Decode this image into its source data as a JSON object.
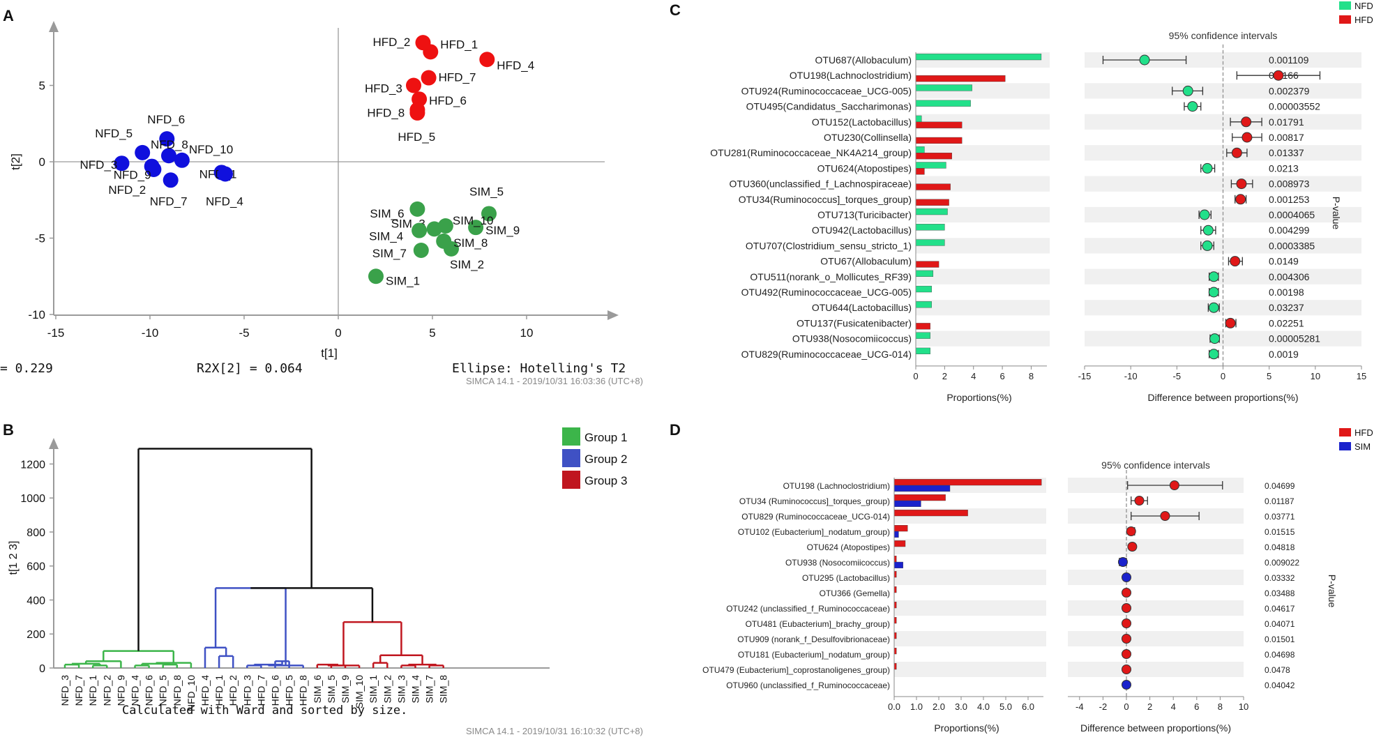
{
  "chart_data": [
    {
      "panel": "A",
      "type": "scatter",
      "panel_label": "A",
      "xlabel": "t[1]",
      "ylabel": "t[2]",
      "xlim": [
        -15,
        15
      ],
      "ylim": [
        -10,
        10
      ],
      "xticks": [
        -15,
        -10,
        -5,
        0,
        5,
        10
      ],
      "yticks": [
        -10,
        -5,
        0,
        5
      ],
      "footer_left": "= 0.229",
      "footer_mid": "R2X[2] = 0.064",
      "footer_right": "Ellipse: Hotelling's T2",
      "watermark": "SIMCA 14.1 - 2019/10/31 16:03:36 (UTC+8)",
      "colors": {
        "NFD": "#1010dd",
        "HFD": "#ee1111",
        "SIM": "#3aa14a"
      },
      "points": [
        {
          "label": "NFD_1",
          "group": "NFD",
          "x": -6.2,
          "y": -0.7
        },
        {
          "label": "NFD_2",
          "group": "NFD",
          "x": -9.8,
          "y": -0.5
        },
        {
          "label": "NFD_3",
          "group": "NFD",
          "x": -11.5,
          "y": -0.1
        },
        {
          "label": "NFD_4",
          "group": "NFD",
          "x": -6.0,
          "y": -0.8
        },
        {
          "label": "NFD_5",
          "group": "NFD",
          "x": -10.4,
          "y": 0.6
        },
        {
          "label": "NFD_6",
          "group": "NFD",
          "x": -9.1,
          "y": 1.5
        },
        {
          "label": "NFD_7",
          "group": "NFD",
          "x": -8.9,
          "y": -1.2
        },
        {
          "label": "NFD_8",
          "group": "NFD",
          "x": -9.0,
          "y": 0.4
        },
        {
          "label": "NFD_9",
          "group": "NFD",
          "x": -9.9,
          "y": -0.3
        },
        {
          "label": "NFD_10",
          "group": "NFD",
          "x": -8.3,
          "y": 0.1
        },
        {
          "label": "HFD_1",
          "group": "HFD",
          "x": 4.9,
          "y": 7.2
        },
        {
          "label": "HFD_2",
          "group": "HFD",
          "x": 4.5,
          "y": 7.8
        },
        {
          "label": "HFD_3",
          "group": "HFD",
          "x": 4.0,
          "y": 5.0
        },
        {
          "label": "HFD_4",
          "group": "HFD",
          "x": 7.9,
          "y": 6.7
        },
        {
          "label": "HFD_5",
          "group": "HFD",
          "x": 4.2,
          "y": 3.2
        },
        {
          "label": "HFD_6",
          "group": "HFD",
          "x": 4.3,
          "y": 4.1
        },
        {
          "label": "HFD_7",
          "group": "HFD",
          "x": 4.8,
          "y": 5.5
        },
        {
          "label": "HFD_8",
          "group": "HFD",
          "x": 4.2,
          "y": 3.4
        },
        {
          "label": "SIM_1",
          "group": "SIM",
          "x": 2.0,
          "y": -7.5
        },
        {
          "label": "SIM_2",
          "group": "SIM",
          "x": 6.0,
          "y": -5.7
        },
        {
          "label": "SIM_3",
          "group": "SIM",
          "x": 5.1,
          "y": -4.4
        },
        {
          "label": "SIM_4",
          "group": "SIM",
          "x": 4.3,
          "y": -4.5
        },
        {
          "label": "SIM_5",
          "group": "SIM",
          "x": 8.0,
          "y": -3.4
        },
        {
          "label": "SIM_6",
          "group": "SIM",
          "x": 4.2,
          "y": -3.1
        },
        {
          "label": "SIM_7",
          "group": "SIM",
          "x": 4.4,
          "y": -5.8
        },
        {
          "label": "SIM_8",
          "group": "SIM",
          "x": 5.6,
          "y": -5.2
        },
        {
          "label": "SIM_9",
          "group": "SIM",
          "x": 7.3,
          "y": -4.3
        },
        {
          "label": "SIM_10",
          "group": "SIM",
          "x": 5.7,
          "y": -4.2
        }
      ]
    },
    {
      "panel": "B",
      "type": "dendrogram",
      "panel_label": "B",
      "ylabel": "t[1 2 3]",
      "ylim": [
        0,
        1300
      ],
      "yticks": [
        0,
        200,
        400,
        600,
        800,
        1000,
        1200
      ],
      "caption": "Calculated with Ward and sorted by size.",
      "watermark": "SIMCA 14.1 - 2019/10/31 16:10:32 (UTC+8)",
      "leaves": [
        "NFD_3",
        "NFD_7",
        "NFD_1",
        "NFD_2",
        "NFD_9",
        "NFD_4",
        "NFD_6",
        "NFD_5",
        "NFD_8",
        "NFD_10",
        "HFD_4",
        "HFD_1",
        "HFD_2",
        "HFD_3",
        "HFD_7",
        "HFD_6",
        "HFD_5",
        "HFD_8",
        "SIM_6",
        "SIM_5",
        "SIM_9",
        "SIM_10",
        "SIM_1",
        "SIM_2",
        "SIM_3",
        "SIM_4",
        "SIM_7",
        "SIM_8"
      ],
      "legend": [
        {
          "label": "Group 1",
          "color": "#3cb54a"
        },
        {
          "label": "Group 2",
          "color": "#3f51c4"
        },
        {
          "label": "Group 3",
          "color": "#c0161f"
        }
      ],
      "root_color": "#111111",
      "merges": [
        {
          "l": [
            0,
            1
          ],
          "h": 20,
          "c": 0
        },
        {
          "l": [
            2,
            3
          ],
          "h": 15,
          "c": 0
        },
        {
          "l": [
            0,
            1,
            2,
            3
          ],
          "h": 25,
          "c": 0
        },
        {
          "l": [
            5,
            6
          ],
          "h": 15,
          "c": 0
        },
        {
          "l": [
            7,
            8
          ],
          "h": 20,
          "c": 0
        },
        {
          "l": [
            5,
            6,
            7,
            8
          ],
          "h": 25,
          "c": 0
        },
        {
          "l": [
            5,
            6,
            7,
            8,
            9
          ],
          "h": 30,
          "c": 0
        },
        {
          "l": [
            0,
            1,
            2,
            3,
            4
          ],
          "h": 40,
          "c": 0
        },
        {
          "l": [
            0,
            1,
            2,
            3,
            4,
            5,
            6,
            7,
            8,
            9
          ],
          "h": 100,
          "c": 0
        },
        {
          "l": [
            11,
            12
          ],
          "h": 70,
          "c": 1
        },
        {
          "l": [
            10,
            11,
            12
          ],
          "h": 120,
          "c": 1
        },
        {
          "l": [
            13,
            14
          ],
          "h": 15,
          "c": 1
        },
        {
          "l": [
            15,
            16
          ],
          "h": 40,
          "c": 1
        },
        {
          "l": [
            13,
            14,
            15,
            16
          ],
          "h": 20,
          "c": 1
        },
        {
          "l": [
            13,
            14,
            15,
            16,
            17
          ],
          "h": 15,
          "c": 1
        },
        {
          "l": [
            10,
            11,
            12,
            13,
            14,
            15,
            16,
            17
          ],
          "h": 470,
          "c": 1
        },
        {
          "l": [
            19,
            20
          ],
          "h": 15,
          "c": 2
        },
        {
          "l": [
            18,
            19,
            20
          ],
          "h": 20,
          "c": 2
        },
        {
          "l": [
            18,
            19,
            20,
            21
          ],
          "h": 15,
          "c": 2
        },
        {
          "l": [
            22,
            23
          ],
          "h": 30,
          "c": 2
        },
        {
          "l": [
            24,
            25
          ],
          "h": 15,
          "c": 2
        },
        {
          "l": [
            26,
            27
          ],
          "h": 15,
          "c": 2
        },
        {
          "l": [
            24,
            25,
            26,
            27
          ],
          "h": 20,
          "c": 2
        },
        {
          "l": [
            22,
            23,
            24,
            25,
            26,
            27
          ],
          "h": 75,
          "c": 2
        },
        {
          "l": [
            18,
            19,
            20,
            21,
            22,
            23,
            24,
            25,
            26,
            27
          ],
          "h": 270,
          "c": 2
        },
        {
          "l": [
            10,
            11,
            12,
            13,
            14,
            15,
            16,
            17,
            18,
            19,
            20,
            21,
            22,
            23,
            24,
            25,
            26,
            27
          ],
          "h": 470,
          "c": 3
        },
        {
          "l": [
            0,
            1,
            2,
            3,
            4,
            5,
            6,
            7,
            8,
            9,
            10,
            11,
            12,
            13,
            14,
            15,
            16,
            17,
            18,
            19,
            20,
            21,
            22,
            23,
            24,
            25,
            26,
            27
          ],
          "h": 1290,
          "c": 3
        }
      ]
    },
    {
      "panel": "C",
      "type": "bar",
      "panel_label": "C",
      "ci_title": "95% confidence intervals",
      "xlabel_left": "Proportions(%)",
      "xlabel_right": "Difference between proportions(%)",
      "pvalue_label": "P-value",
      "prop_ticks": [
        0,
        2,
        4,
        6,
        8
      ],
      "prop_max": 8.8,
      "diff_ticks": [
        -15,
        -10,
        -5,
        0,
        5,
        10,
        15
      ],
      "diff_range": [
        -15,
        15
      ],
      "groups": [
        {
          "name": "NFD",
          "color": "#22e08a"
        },
        {
          "name": "HFD",
          "color": "#e01818"
        }
      ],
      "categories": [
        "OTU687(Allobaculum)",
        "OTU198(Lachnoclostridium)",
        "OTU924(Ruminococcaceae_UCG-005)",
        "OTU495(Candidatus_Saccharimonas)",
        "OTU152(Lactobacillus)",
        "OTU230(Collinsella)",
        "OTU281(Ruminococcaceae_NK4A214_group)",
        "OTU624(Atopostipes)",
        "OTU360(unclassified_f_Lachnospiraceae)",
        "OTU34(Ruminococcus]_torques_group)",
        "OTU713(Turicibacter)",
        "OTU942(Lactobacillus)",
        "OTU707(Clostridium_sensu_stricto_1)",
        "OTU67(Allobaculum)",
        "OTU511(norank_o_Mollicutes_RF39)",
        "OTU492(Ruminococcaceae_UCG-005)",
        "OTU644(Lactobacillus)",
        "OTU137(Fusicatenibacter)",
        "OTU938(Nosocomiicoccus)",
        "OTU829(Ruminococcaceae_UCG-014)"
      ],
      "series": [
        {
          "name": "NFD",
          "values": [
            8.7,
            0,
            3.9,
            3.8,
            0.4,
            0,
            0.6,
            2.1,
            0,
            0,
            2.2,
            2.0,
            2.0,
            0,
            1.2,
            1.1,
            1.1,
            0,
            1.0,
            1.0
          ]
        },
        {
          "name": "HFD",
          "values": [
            0,
            6.2,
            0,
            0,
            3.2,
            3.2,
            2.5,
            0.6,
            2.4,
            2.3,
            0,
            0,
            0,
            1.6,
            0,
            0,
            0,
            1.0,
            0,
            0
          ]
        }
      ],
      "diff": [
        -8.5,
        6.0,
        -3.8,
        -3.3,
        2.5,
        2.6,
        1.5,
        -1.7,
        2.0,
        1.9,
        -2.0,
        -1.6,
        -1.7,
        1.3,
        -1.0,
        -1.0,
        -1.0,
        0.8,
        -0.9,
        -1.0
      ],
      "ci_low": [
        -13.0,
        1.5,
        -5.5,
        -4.2,
        0.8,
        1.0,
        0.4,
        -2.4,
        0.9,
        1.3,
        -2.6,
        -2.4,
        -2.4,
        0.6,
        -1.5,
        -1.5,
        -1.6,
        0.3,
        -1.4,
        -1.5
      ],
      "ci_high": [
        -4.0,
        10.5,
        -2.2,
        -2.4,
        4.2,
        4.2,
        2.6,
        -0.9,
        3.2,
        2.5,
        -1.3,
        -0.8,
        -1.0,
        2.1,
        -0.5,
        -0.5,
        -0.4,
        1.4,
        -0.4,
        -0.5
      ],
      "pvalues": [
        "0.001109",
        "0.0166",
        "0.002379",
        "0.00003552",
        "0.01791",
        "0.00817",
        "0.01337",
        "0.0213",
        "0.008973",
        "0.001253",
        "0.0004065",
        "0.004299",
        "0.0003385",
        "0.0149",
        "0.004306",
        "0.00198",
        "0.03237",
        "0.02251",
        "0.00005281",
        "0.0019"
      ]
    },
    {
      "panel": "D",
      "type": "bar",
      "panel_label": "D",
      "ci_title": "95% confidence intervals",
      "xlabel_left": "Proportions(%)",
      "xlabel_right": "Difference between proportions(%)",
      "pvalue_label": "P-value",
      "prop_ticks": [
        "0.0",
        "1.0",
        "2.0",
        "3.0",
        "4.0",
        "5.0",
        "6.0"
      ],
      "prop_max": 6.5,
      "diff_ticks": [
        -4,
        -2,
        0,
        2,
        4,
        6,
        8,
        10
      ],
      "diff_range": [
        -5,
        10
      ],
      "groups": [
        {
          "name": "HFD",
          "color": "#e01818"
        },
        {
          "name": "SIM",
          "color": "#1a22cc"
        }
      ],
      "categories": [
        "OTU198 (Lachnoclostridium)",
        "OTU34 (Ruminococcus]_torques_group)",
        "OTU829 (Ruminococcaceae_UCG-014)",
        "OTU102 (Eubacterium]_nodatum_group)",
        "OTU624 (Atopostipes)",
        "OTU938 (Nosocomiicoccus)",
        "OTU295 (Lactobacillus)",
        "OTU366 (Gemella)",
        "OTU242 (unclassified_f_Ruminococcaceae)",
        "OTU481 (Eubacterium]_brachy_group)",
        "OTU909 (norank_f_Desulfovibrionaceae)",
        "OTU181 (Eubacterium]_nodatum_group)",
        "OTU479 (Eubacterium]_coprostanoligenes_group)",
        "OTU960 (unclassified_f_Ruminococcaceae)"
      ],
      "series": [
        {
          "name": "HFD",
          "values": [
            6.6,
            2.3,
            3.3,
            0.6,
            0.5,
            0.1,
            0.1,
            0.1,
            0.1,
            0.1,
            0.1,
            0.1,
            0.1,
            0
          ]
        },
        {
          "name": "SIM",
          "values": [
            2.5,
            1.2,
            0,
            0.2,
            0,
            0.4,
            0,
            0,
            0,
            0,
            0,
            0,
            0,
            0
          ]
        }
      ],
      "diff": [
        4.1,
        1.1,
        3.3,
        0.4,
        0.5,
        -0.3,
        0,
        0,
        0,
        0,
        0,
        0,
        0,
        0
      ],
      "ci_low": [
        0.1,
        0.4,
        0.4,
        0.2,
        0.3,
        -0.6,
        -0.1,
        -0.1,
        -0.1,
        -0.1,
        -0.1,
        -0.1,
        -0.1,
        -0.1
      ],
      "ci_high": [
        8.2,
        1.8,
        6.2,
        0.7,
        0.7,
        0,
        0.1,
        0.1,
        0.1,
        0.1,
        0.1,
        0.1,
        0.1,
        0.1
      ],
      "diff_colors": [
        "HFD",
        "HFD",
        "HFD",
        "HFD",
        "HFD",
        "SIM",
        "SIM",
        "HFD",
        "HFD",
        "HFD",
        "HFD",
        "HFD",
        "HFD",
        "SIM"
      ],
      "pvalues": [
        "0.04699",
        "0.01187",
        "0.03771",
        "0.01515",
        "0.04818",
        "0.009022",
        "0.03332",
        "0.03488",
        "0.04617",
        "0.04071",
        "0.01501",
        "0.04698",
        "0.0478",
        "0.04042"
      ]
    }
  ]
}
